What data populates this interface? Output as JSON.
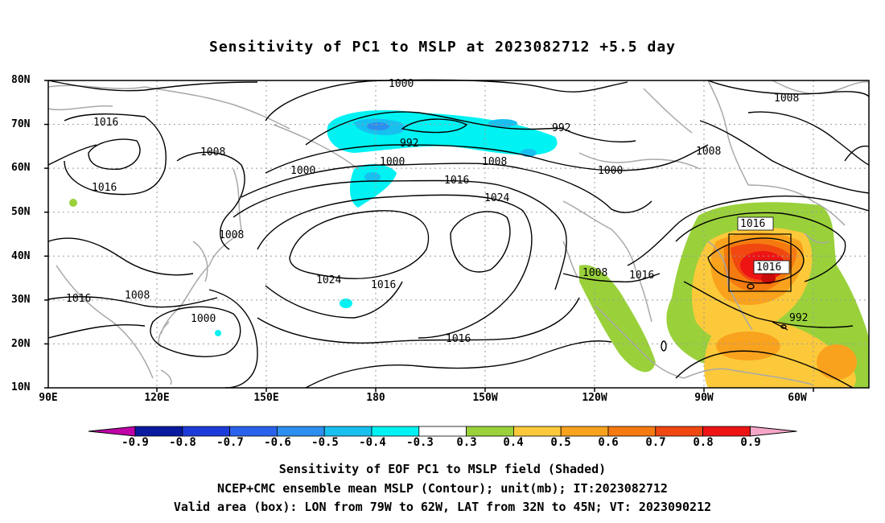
{
  "title": "Sensitivity of PC1 to MSLP at 2023082712 +5.5 day",
  "lat_ticks": [
    "80N",
    "70N",
    "60N",
    "50N",
    "40N",
    "30N",
    "20N",
    "10N"
  ],
  "lon_ticks": [
    "90E",
    "120E",
    "150E",
    "180",
    "150W",
    "120W",
    "90W",
    "60W"
  ],
  "contour_labels": [
    "1000",
    "992",
    "1016",
    "1008",
    "1000",
    "992",
    "1008",
    "1000",
    "1000",
    "1016",
    "1024",
    "1008",
    "1024",
    "1016",
    "1008",
    "1008",
    "1016",
    "1000",
    "1016",
    "1016",
    "1016",
    "1016",
    "992",
    "1008",
    "1008"
  ],
  "colorbar": {
    "labels": [
      "-0.9",
      "-0.8",
      "-0.7",
      "-0.6",
      "-0.5",
      "-0.4",
      "-0.3",
      "0.3",
      "0.4",
      "0.5",
      "0.6",
      "0.7",
      "0.8",
      "0.9"
    ],
    "colors": [
      "#c000a8",
      "#0a1a9e",
      "#1b3cd8",
      "#2a62ec",
      "#2c8eee",
      "#18c0ef",
      "#00f2f2",
      "#ffffff",
      "#9ad13b",
      "#fcc93a",
      "#f9a21e",
      "#f57a10",
      "#f04810",
      "#ee1414",
      "#f5a6c8"
    ]
  },
  "captions": [
    "Sensitivity of EOF PC1 to MSLP field (Shaded)",
    "NCEP+CMC ensemble mean MSLP (Contour); unit(mb); IT:2023082712",
    "Valid area (box): LON from 79W to 62W, LAT from 32N to 45N; VT: 2023090212"
  ]
}
